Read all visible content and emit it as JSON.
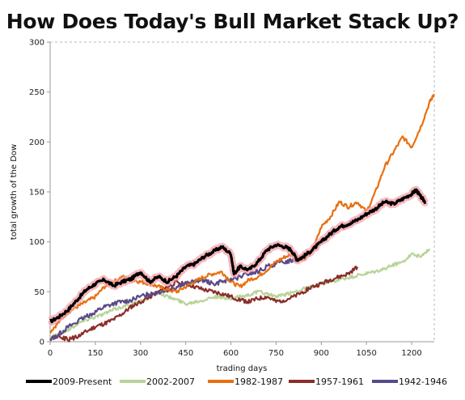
{
  "chart_data": {
    "type": "line",
    "title": "How Does Today's Bull Market Stack Up?",
    "xlabel": "trading days",
    "ylabel": "total growth of the Dow",
    "xlim": [
      0,
      1275
    ],
    "ylim": [
      0,
      300
    ],
    "xticks": [
      0,
      150,
      300,
      450,
      600,
      750,
      900,
      1050,
      1200
    ],
    "yticks": [
      0,
      50,
      100,
      150,
      200,
      250,
      300
    ],
    "grid": false,
    "legend_position": "bottom",
    "series": [
      {
        "name": "2009-Present",
        "color": "#000000",
        "glow": "#f4a0a8",
        "x": [
          0,
          30,
          60,
          90,
          120,
          150,
          180,
          210,
          240,
          270,
          300,
          330,
          360,
          390,
          420,
          450,
          480,
          510,
          540,
          570,
          600,
          610,
          630,
          660,
          690,
          720,
          750,
          780,
          800,
          820,
          840,
          870,
          900,
          930,
          960,
          990,
          1020,
          1050,
          1080,
          1110,
          1140,
          1170,
          1200,
          1215,
          1230,
          1245
        ],
        "y": [
          20,
          25,
          32,
          42,
          52,
          58,
          62,
          56,
          60,
          63,
          70,
          60,
          65,
          60,
          66,
          75,
          78,
          85,
          90,
          95,
          88,
          68,
          75,
          72,
          80,
          92,
          97,
          95,
          92,
          82,
          85,
          92,
          100,
          108,
          115,
          118,
          122,
          128,
          133,
          140,
          138,
          143,
          148,
          152,
          145,
          140
        ]
      },
      {
        "name": "2002-2007",
        "color": "#b8d49a",
        "x": [
          0,
          30,
          60,
          90,
          120,
          150,
          180,
          210,
          240,
          270,
          300,
          330,
          360,
          390,
          420,
          450,
          480,
          510,
          540,
          570,
          600,
          630,
          660,
          690,
          720,
          750,
          780,
          810,
          840,
          870,
          900,
          930,
          960,
          990,
          1020,
          1050,
          1080,
          1110,
          1140,
          1170,
          1200,
          1230,
          1260
        ],
        "y": [
          5,
          8,
          12,
          18,
          22,
          25,
          28,
          32,
          35,
          38,
          40,
          45,
          50,
          45,
          42,
          38,
          40,
          42,
          45,
          44,
          43,
          45,
          47,
          50,
          48,
          45,
          47,
          50,
          53,
          55,
          58,
          60,
          62,
          64,
          66,
          68,
          70,
          73,
          77,
          80,
          88,
          85,
          93
        ]
      },
      {
        "name": "1982-1987",
        "color": "#e87010",
        "x": [
          0,
          30,
          60,
          90,
          120,
          150,
          180,
          210,
          240,
          270,
          300,
          330,
          360,
          390,
          420,
          450,
          480,
          510,
          540,
          570,
          600,
          630,
          660,
          690,
          720,
          750,
          780,
          810,
          840,
          870,
          900,
          930,
          960,
          990,
          1020,
          1050,
          1080,
          1110,
          1140,
          1170,
          1200,
          1230,
          1260,
          1275
        ],
        "y": [
          10,
          20,
          30,
          35,
          40,
          45,
          55,
          60,
          65,
          62,
          60,
          58,
          55,
          52,
          50,
          55,
          60,
          65,
          68,
          70,
          60,
          55,
          62,
          65,
          72,
          80,
          85,
          88,
          82,
          90,
          115,
          125,
          140,
          135,
          140,
          130,
          150,
          175,
          190,
          205,
          195,
          215,
          240,
          248
        ]
      },
      {
        "name": "1957-1961",
        "color": "#8b2e2a",
        "x": [
          0,
          30,
          60,
          90,
          120,
          150,
          180,
          210,
          240,
          270,
          300,
          330,
          360,
          390,
          420,
          450,
          480,
          510,
          540,
          570,
          600,
          630,
          660,
          690,
          720,
          750,
          780,
          810,
          840,
          870,
          900,
          930,
          960,
          990,
          1020
        ],
        "y": [
          3,
          5,
          2,
          5,
          10,
          15,
          18,
          22,
          28,
          35,
          40,
          45,
          50,
          55,
          60,
          58,
          55,
          52,
          50,
          48,
          45,
          42,
          40,
          43,
          45,
          40,
          42,
          45,
          50,
          55,
          58,
          62,
          65,
          68,
          75
        ]
      },
      {
        "name": "1942-1946",
        "color": "#5a4a8a",
        "x": [
          0,
          30,
          60,
          90,
          120,
          150,
          180,
          210,
          240,
          270,
          300,
          330,
          360,
          390,
          420,
          450,
          480,
          510,
          540,
          570,
          600,
          630,
          660,
          690,
          720,
          750,
          780,
          810,
          840,
          870,
          900,
          930,
          960,
          990,
          1020
        ],
        "y": [
          2,
          8,
          15,
          20,
          25,
          30,
          35,
          38,
          40,
          42,
          45,
          48,
          50,
          52,
          55,
          58,
          60,
          62,
          58,
          60,
          62,
          65,
          68,
          70,
          75,
          78,
          80,
          82,
          86,
          92,
          100,
          108,
          112,
          118,
          122
        ]
      }
    ]
  }
}
